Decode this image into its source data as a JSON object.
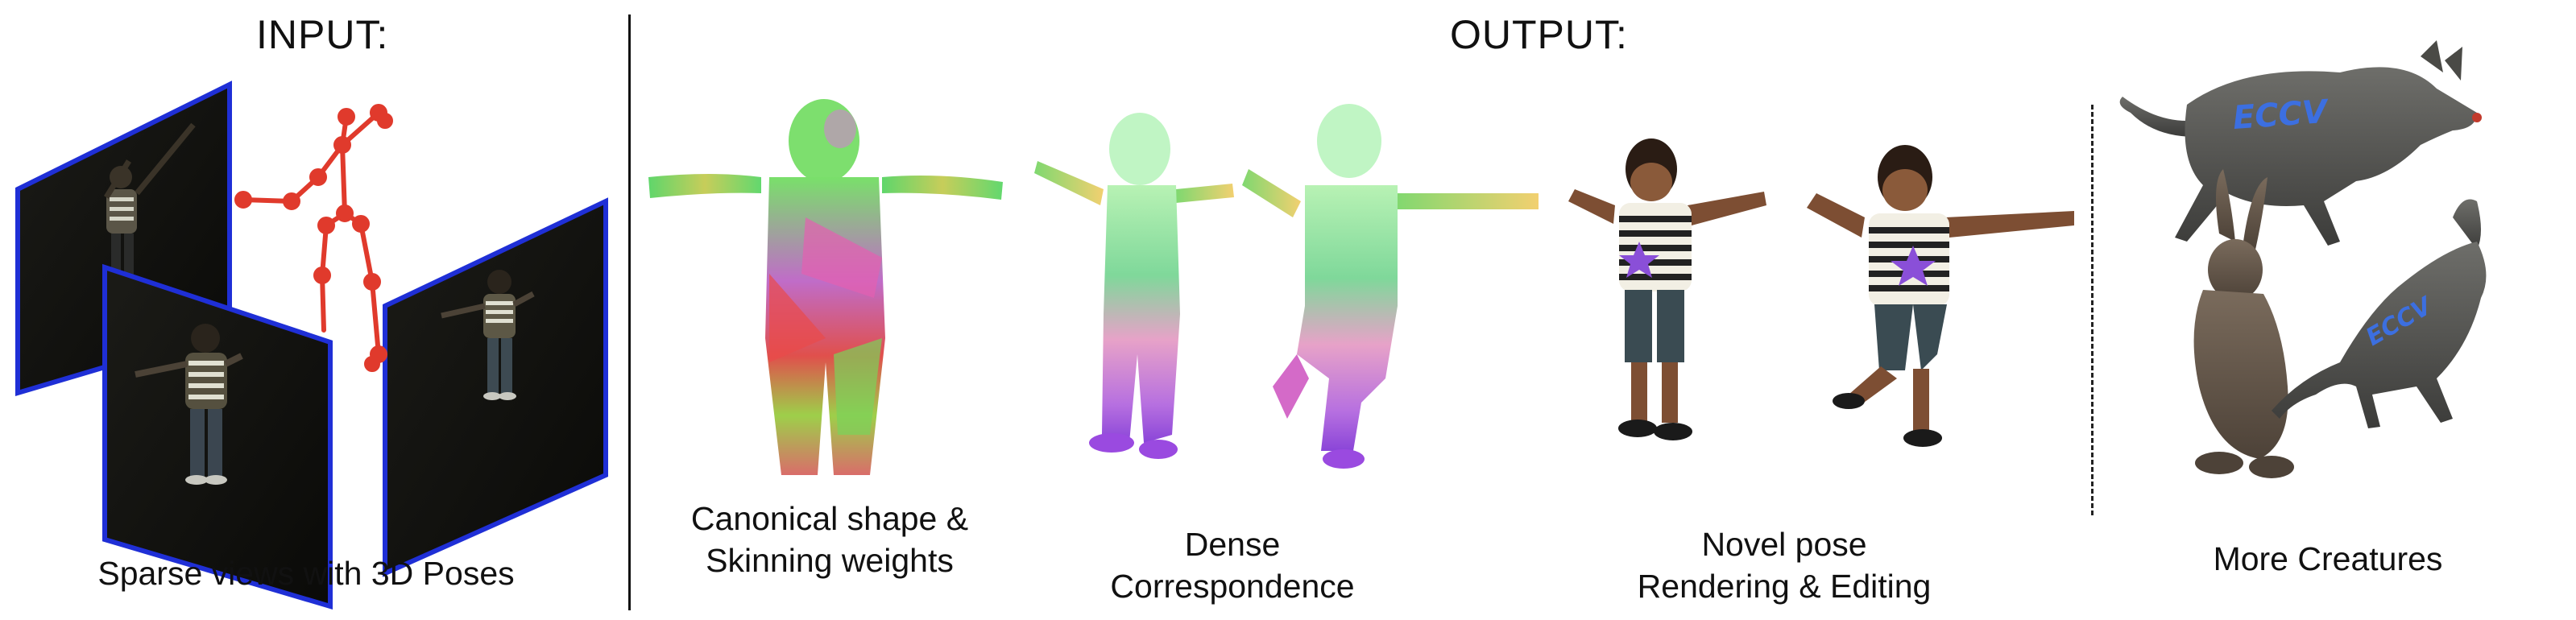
{
  "headers": {
    "input": "INPUT:",
    "output": "OUTPUT:"
  },
  "captions": {
    "sparse_views": "Sparse views with 3D Poses",
    "canonical_line1": "Canonical shape &",
    "canonical_line2": "Skinning weights",
    "dense_line1": "Dense",
    "dense_line2": "Correspondence",
    "novel_line1": "Novel pose",
    "novel_line2": "Rendering & Editing",
    "creatures": "More Creatures"
  },
  "decal_text": {
    "wolf": "ECCV",
    "small_dog": "ECCV"
  },
  "colors": {
    "frame_border": "#1f2fd6",
    "skeleton": "#e03a2c",
    "star": "#8a4fd8",
    "decal": "#3c6fe0",
    "divider": "#111111"
  }
}
